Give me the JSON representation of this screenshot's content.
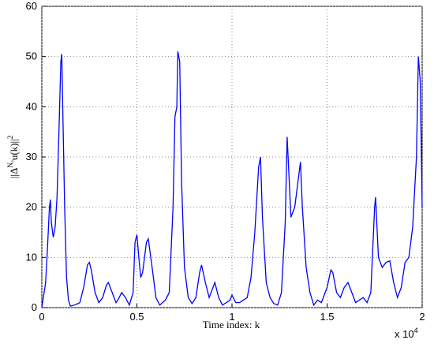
{
  "chart_data": {
    "type": "line",
    "xlabel": "Time index: k",
    "ylabel": {
      "base": "||Δ",
      "sup": "Nᵤ",
      "rest": "u(k)||",
      "power": "2"
    },
    "x_multiplier": {
      "base": "x 10",
      "exponent": "4"
    },
    "xlim": [
      0,
      2
    ],
    "xticks": [
      0,
      0.5,
      1,
      1.5,
      2
    ],
    "ylim": [
      0,
      60
    ],
    "yticks": [
      0,
      10,
      20,
      30,
      40,
      50,
      60
    ],
    "grid": true,
    "series": [
      {
        "color": "#0000ff",
        "x": [
          0,
          0.02,
          0.03,
          0.04,
          0.045,
          0.05,
          0.06,
          0.07,
          0.08,
          0.09,
          0.1,
          0.105,
          0.11,
          0.12,
          0.13,
          0.14,
          0.15,
          0.17,
          0.19,
          0.2,
          0.22,
          0.24,
          0.25,
          0.26,
          0.28,
          0.3,
          0.32,
          0.34,
          0.35,
          0.37,
          0.39,
          0.4,
          0.42,
          0.44,
          0.46,
          0.48,
          0.49,
          0.5,
          0.51,
          0.52,
          0.53,
          0.55,
          0.56,
          0.58,
          0.6,
          0.62,
          0.65,
          0.67,
          0.69,
          0.7,
          0.71,
          0.715,
          0.725,
          0.735,
          0.75,
          0.77,
          0.79,
          0.81,
          0.83,
          0.84,
          0.86,
          0.88,
          0.9,
          0.91,
          0.93,
          0.95,
          0.97,
          0.99,
          1.0,
          1.02,
          1.04,
          1.06,
          1.08,
          1.1,
          1.12,
          1.14,
          1.15,
          1.16,
          1.18,
          1.2,
          1.22,
          1.24,
          1.26,
          1.28,
          1.29,
          1.3,
          1.31,
          1.33,
          1.35,
          1.36,
          1.37,
          1.39,
          1.41,
          1.43,
          1.45,
          1.47,
          1.5,
          1.52,
          1.53,
          1.55,
          1.57,
          1.59,
          1.61,
          1.63,
          1.65,
          1.67,
          1.69,
          1.71,
          1.73,
          1.75,
          1.755,
          1.77,
          1.79,
          1.81,
          1.83,
          1.85,
          1.87,
          1.89,
          1.91,
          1.93,
          1.95,
          1.97,
          1.98,
          1.99,
          2.0
        ],
        "values": [
          0,
          5,
          12,
          20,
          21.5,
          17,
          14,
          16,
          22,
          35,
          49,
          50.5,
          40,
          20,
          6,
          1.5,
          0.3,
          0.5,
          0.8,
          1,
          4,
          8.5,
          9,
          7.5,
          3,
          1,
          2,
          4.5,
          5,
          3,
          1,
          1.5,
          3,
          2,
          0.5,
          3,
          13,
          14.5,
          10,
          6,
          7,
          13,
          13.7,
          8,
          2,
          0.5,
          1.5,
          3,
          20,
          38,
          40,
          51,
          49,
          25,
          8,
          2,
          0.8,
          2,
          7,
          8.5,
          5,
          2,
          4,
          5,
          2,
          0.5,
          1,
          1.5,
          2.5,
          1,
          1,
          1.5,
          2,
          6,
          15,
          28,
          30,
          18,
          5,
          2,
          0.8,
          0.5,
          3,
          17,
          34,
          26,
          18,
          20,
          26,
          29,
          20,
          8,
          3,
          0.5,
          1.5,
          1,
          4,
          7.5,
          7,
          3,
          2,
          4,
          5,
          3,
          1,
          1.5,
          2,
          1,
          3,
          20,
          22,
          10,
          8,
          9,
          9.3,
          5,
          2,
          4,
          9,
          10,
          16,
          30,
          50,
          45,
          20
        ]
      }
    ]
  }
}
